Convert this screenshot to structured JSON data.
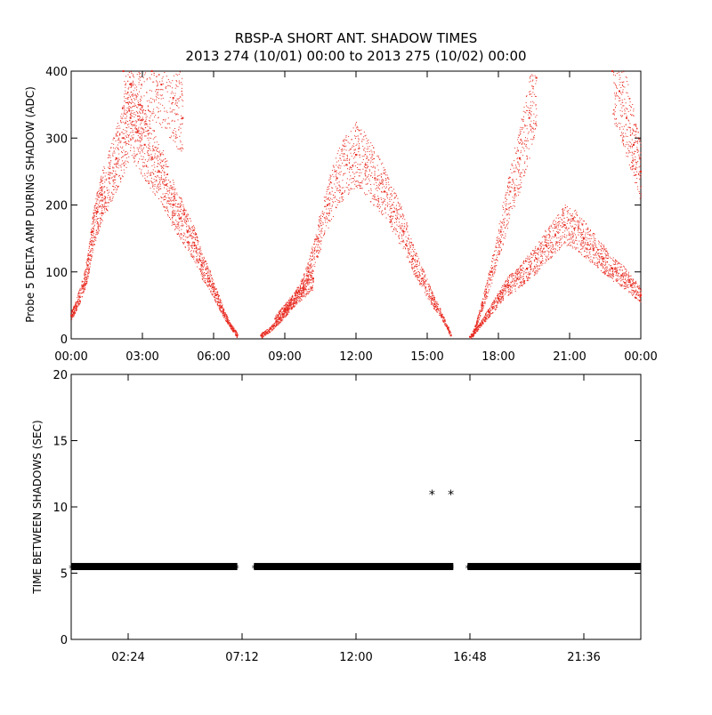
{
  "figure": {
    "title_line1": "RBSP-A SHORT ANT. SHADOW TIMES",
    "title_line2": "2013 274 (10/01) 00:00 to 2013 275 (10/02) 00:00"
  },
  "chart_data": [
    {
      "type": "scatter",
      "ylabel": "Probe 5 DELTA AMP DURING SHADOW (ADC)",
      "xlabel": "",
      "x_unit": "hours",
      "xlim": [
        0,
        24
      ],
      "ylim": [
        0,
        400
      ],
      "x_ticks": [
        0,
        3,
        6,
        9,
        12,
        15,
        18,
        21,
        24
      ],
      "x_tick_labels": [
        "00:00",
        "03:00",
        "06:00",
        "09:00",
        "12:00",
        "15:00",
        "18:00",
        "21:00",
        "00:00"
      ],
      "y_ticks": [
        0,
        100,
        200,
        300,
        400
      ],
      "y_tick_labels": [
        "0",
        "100",
        "200",
        "300",
        "400"
      ],
      "marker_color": "#e8281e",
      "series": [
        {
          "x": [
            0.0,
            0.2,
            0.5,
            0.7,
            0.9,
            1.1,
            1.3,
            1.6,
            1.9,
            2.2,
            2.5,
            2.8,
            3.1,
            3.4,
            3.7,
            4.0,
            4.3,
            4.6,
            4.9,
            5.2,
            5.5,
            5.8,
            6.1,
            6.4,
            6.7,
            7.0
          ],
          "y": [
            35,
            50,
            80,
            110,
            160,
            190,
            215,
            240,
            270,
            300,
            330,
            310,
            290,
            270,
            250,
            230,
            200,
            180,
            160,
            140,
            110,
            90,
            65,
            40,
            20,
            5
          ]
        },
        {
          "x": [
            2.2,
            2.5,
            2.9,
            3.4,
            3.8,
            4.3,
            4.7
          ],
          "y": [
            400,
            380,
            350,
            400,
            380,
            360,
            330
          ]
        },
        {
          "x": [
            8.0,
            8.4,
            8.8,
            9.2,
            9.6,
            10.0,
            10.4,
            10.8,
            11.2,
            11.6,
            12.0,
            12.4,
            12.8,
            13.2,
            13.6,
            14.0,
            14.4,
            14.8,
            15.2,
            15.6,
            16.0
          ],
          "y": [
            5,
            15,
            30,
            50,
            70,
            100,
            150,
            200,
            240,
            260,
            275,
            260,
            240,
            220,
            190,
            160,
            120,
            90,
            60,
            35,
            5
          ]
        },
        {
          "x": [
            8.6,
            9.0,
            9.4,
            9.8,
            10.2
          ],
          "y": [
            30,
            45,
            60,
            75,
            90
          ]
        },
        {
          "x": [
            16.8,
            17.2,
            17.6,
            18.0,
            18.4,
            18.8,
            19.2,
            19.6,
            20.0,
            20.4,
            20.8,
            21.2,
            21.6,
            22.0,
            22.4,
            22.8,
            23.2,
            23.6,
            24.0
          ],
          "y": [
            3,
            20,
            40,
            60,
            80,
            90,
            105,
            120,
            140,
            155,
            170,
            165,
            150,
            135,
            120,
            105,
            95,
            80,
            65
          ]
        },
        {
          "x": [
            16.9,
            17.3,
            17.7,
            18.1,
            18.5,
            18.9,
            19.3,
            19.6
          ],
          "y": [
            5,
            50,
            100,
            160,
            220,
            270,
            330,
            390
          ]
        },
        {
          "x": [
            22.8,
            23.1,
            23.4,
            23.7,
            24.0
          ],
          "y": [
            400,
            370,
            330,
            290,
            250
          ]
        }
      ]
    },
    {
      "type": "scatter",
      "ylabel": "TIME BETWEEN SHADOWS (SEC)",
      "xlabel": "",
      "x_unit": "hours",
      "xlim": [
        0,
        24
      ],
      "ylim": [
        0,
        20
      ],
      "x_ticks": [
        2.4,
        7.2,
        12.0,
        16.8,
        21.6
      ],
      "x_tick_labels": [
        "02:24",
        "07:12",
        "12:00",
        "16:48",
        "21:36"
      ],
      "y_ticks": [
        0,
        5,
        10,
        15,
        20
      ],
      "y_tick_labels": [
        "0",
        "5",
        "10",
        "15",
        "20"
      ],
      "marker_color": "#000000",
      "marker": "*",
      "bands": [
        {
          "x_start": 0.0,
          "x_end": 7.0,
          "y": 5.5
        },
        {
          "x_start": 7.7,
          "x_end": 16.1,
          "y": 5.5
        },
        {
          "x_start": 16.7,
          "x_end": 24.0,
          "y": 5.5
        }
      ],
      "outliers": {
        "x": [
          15.2,
          16.0
        ],
        "y": [
          11,
          11
        ]
      }
    }
  ]
}
